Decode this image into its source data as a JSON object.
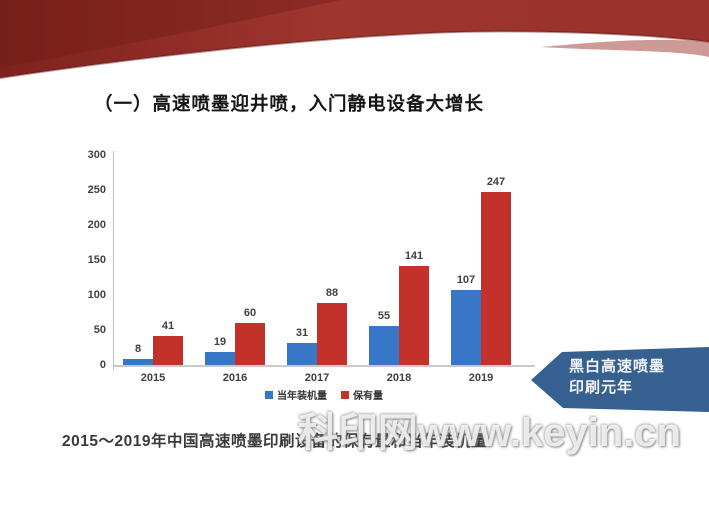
{
  "slide": {
    "title": "（一）高速喷墨迎井喷，入门静电设备大增长",
    "caption": "2015～2019年中国高速喷墨印刷设备的保有量和当年装机量",
    "watermark": "科印网www.keyin.cn",
    "callout": {
      "line1": "黑白高速喷墨",
      "line2": "印刷元年"
    }
  },
  "chart_data": {
    "type": "bar",
    "categories": [
      "2015",
      "2016",
      "2017",
      "2018",
      "2019"
    ],
    "series": [
      {
        "name": "当年装机量",
        "color": "#3876C8",
        "values": [
          8,
          19,
          31,
          55,
          107
        ]
      },
      {
        "name": "保有量",
        "color": "#C2312A",
        "values": [
          41,
          60,
          88,
          141,
          247
        ]
      }
    ],
    "ylim": [
      0,
      300
    ],
    "yticks": [
      0,
      50,
      100,
      150,
      200,
      250,
      300
    ],
    "grid": false,
    "data_labels": true,
    "legend_position": "bottom"
  },
  "colors": {
    "bar_blue": "#3876C8",
    "bar_red": "#C2312A",
    "callout_blue": "#36608F",
    "ribbon_red": "#9E352E",
    "ribbon_dark_red": "#7E221E"
  }
}
